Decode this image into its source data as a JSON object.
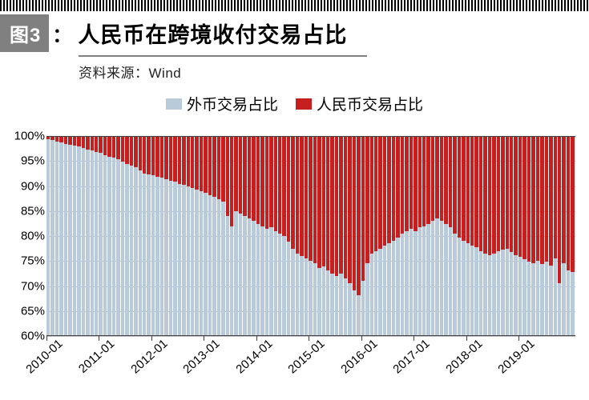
{
  "header": {
    "figure_badge": "图3",
    "badge_bg": "#808080",
    "colon": "：",
    "title": "人民币在跨境收付交易占比",
    "subtitle": "资料来源：Wind"
  },
  "legend": {
    "items": [
      {
        "label": "外币交易占比",
        "color": "#b9cadb"
      },
      {
        "label": "人民币交易占比",
        "color": "#c5201f"
      }
    ]
  },
  "chart": {
    "type": "stacked-bar",
    "ylim": [
      60,
      100
    ],
    "ytick_step": 5,
    "yticks": [
      "100%",
      "95%",
      "90%",
      "85%",
      "80%",
      "75%",
      "70%",
      "65%",
      "60%"
    ],
    "xtick_labels": [
      "2010-01",
      "2011-01",
      "2012-01",
      "2013-01",
      "2014-01",
      "2015-01",
      "2016-01",
      "2017-01",
      "2018-01",
      "2019-01"
    ],
    "xtick_every_n_bars": 12,
    "grid_color": "#888888",
    "border_color": "#444444",
    "title_fontsize": 27,
    "label_fontsize": 15,
    "series_colors": {
      "foreign": "#b9cadb",
      "rmb": "#c5201f"
    },
    "foreign_pct": [
      99.5,
      99.3,
      99.0,
      98.8,
      98.6,
      98.4,
      98.2,
      98.0,
      97.8,
      97.5,
      97.2,
      97.0,
      96.7,
      96.3,
      96.0,
      95.8,
      95.5,
      95.0,
      94.5,
      94.2,
      93.8,
      93.2,
      92.6,
      92.5,
      92.3,
      92.0,
      91.7,
      91.5,
      91.2,
      91.0,
      90.5,
      90.3,
      90.0,
      89.7,
      89.3,
      89.0,
      88.7,
      88.3,
      87.9,
      87.5,
      87.0,
      84.0,
      82.0,
      85.0,
      84.5,
      84.0,
      83.5,
      83.0,
      82.5,
      82.0,
      81.5,
      81.7,
      81.0,
      80.5,
      80.0,
      78.8,
      77.5,
      76.5,
      76.0,
      75.5,
      75.0,
      74.5,
      73.5,
      73.8,
      73.0,
      72.5,
      72.0,
      72.5,
      71.5,
      70.5,
      69.0,
      68.0,
      71.0,
      74.5,
      76.5,
      77.0,
      77.5,
      78.0,
      78.5,
      79.0,
      79.7,
      80.5,
      81.0,
      81.5,
      81.0,
      81.8,
      82.0,
      82.5,
      83.0,
      83.5,
      83.0,
      82.5,
      81.8,
      80.5,
      79.7,
      79.0,
      78.5,
      78.0,
      77.8,
      77.0,
      76.5,
      76.2,
      76.5,
      77.0,
      77.2,
      77.5,
      76.8,
      76.2,
      75.8,
      75.3,
      74.8,
      74.5,
      75.0,
      74.3,
      74.8,
      74.0,
      75.5,
      70.5,
      74.5,
      73.0,
      72.7
    ]
  }
}
